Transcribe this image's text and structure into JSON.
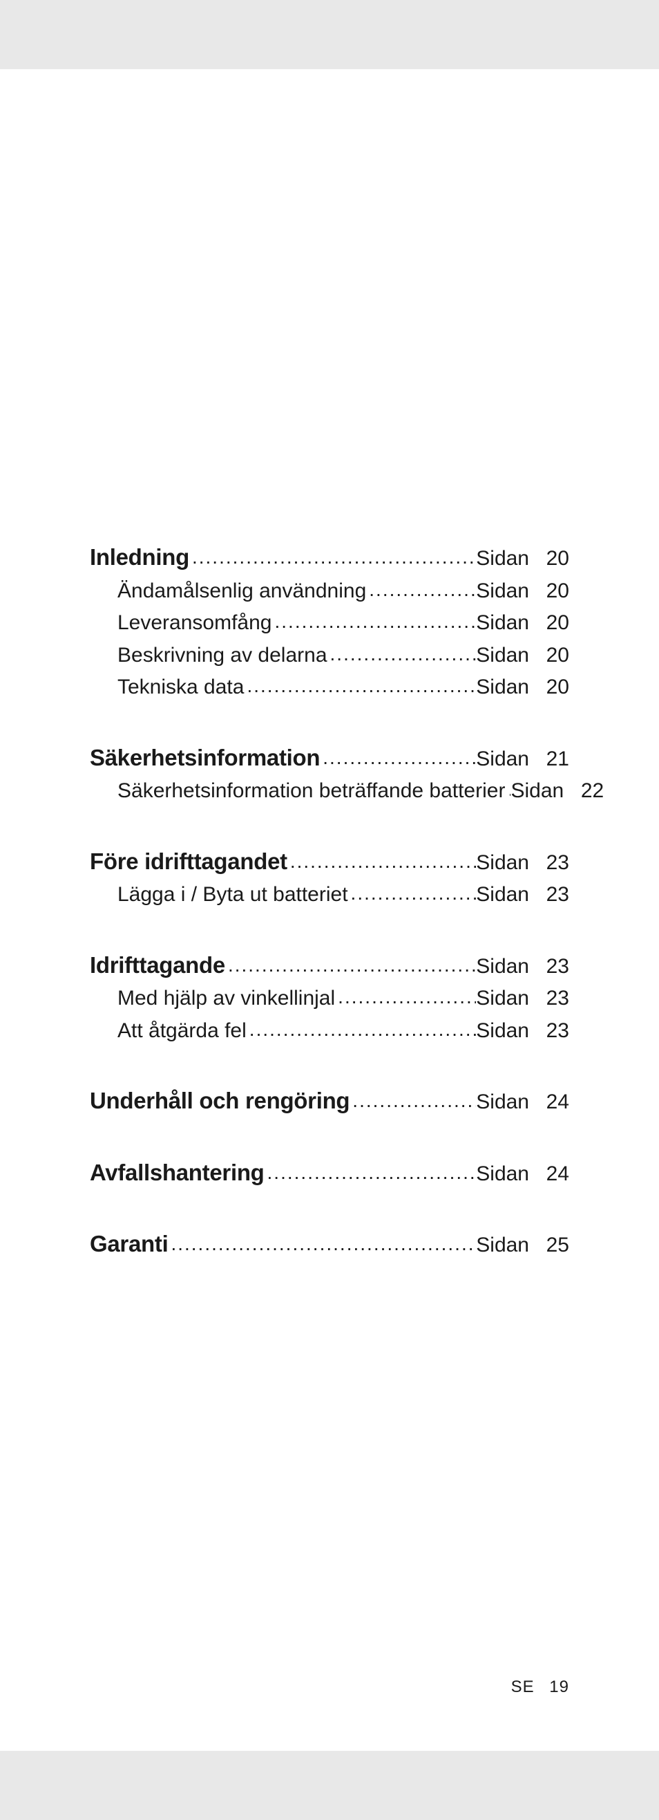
{
  "pageword": "Sidan",
  "footer": {
    "country": "SE",
    "page": "19"
  },
  "sections": [
    {
      "heading": {
        "label": "Inledning",
        "page": "20"
      },
      "items": [
        {
          "label": "Ändamålsenlig användning",
          "page": "20"
        },
        {
          "label": "Leveransomfång",
          "page": "20"
        },
        {
          "label": "Beskrivning av delarna",
          "page": "20"
        },
        {
          "label": "Tekniska data",
          "page": "20"
        }
      ]
    },
    {
      "heading": {
        "label": "Säkerhetsinformation",
        "page": "21"
      },
      "items": [
        {
          "label": "Säkerhetsinformation beträffande batterier",
          "page": "22"
        }
      ]
    },
    {
      "heading": {
        "label": "Före idrifttagandet",
        "page": "23"
      },
      "items": [
        {
          "label": "Lägga i / Byta ut batteriet",
          "page": "23"
        }
      ]
    },
    {
      "heading": {
        "label": "Idrifttagande",
        "page": "23"
      },
      "items": [
        {
          "label": "Med hjälp av vinkellinjal",
          "page": "23"
        },
        {
          "label": "Att åtgärda fel",
          "page": "23"
        }
      ]
    },
    {
      "heading": {
        "label": "Underhåll och rengöring",
        "page": "24"
      },
      "items": []
    },
    {
      "heading": {
        "label": "Avfallshantering",
        "page": "24"
      },
      "items": []
    },
    {
      "heading": {
        "label": "Garanti",
        "page": "25"
      },
      "items": []
    }
  ]
}
